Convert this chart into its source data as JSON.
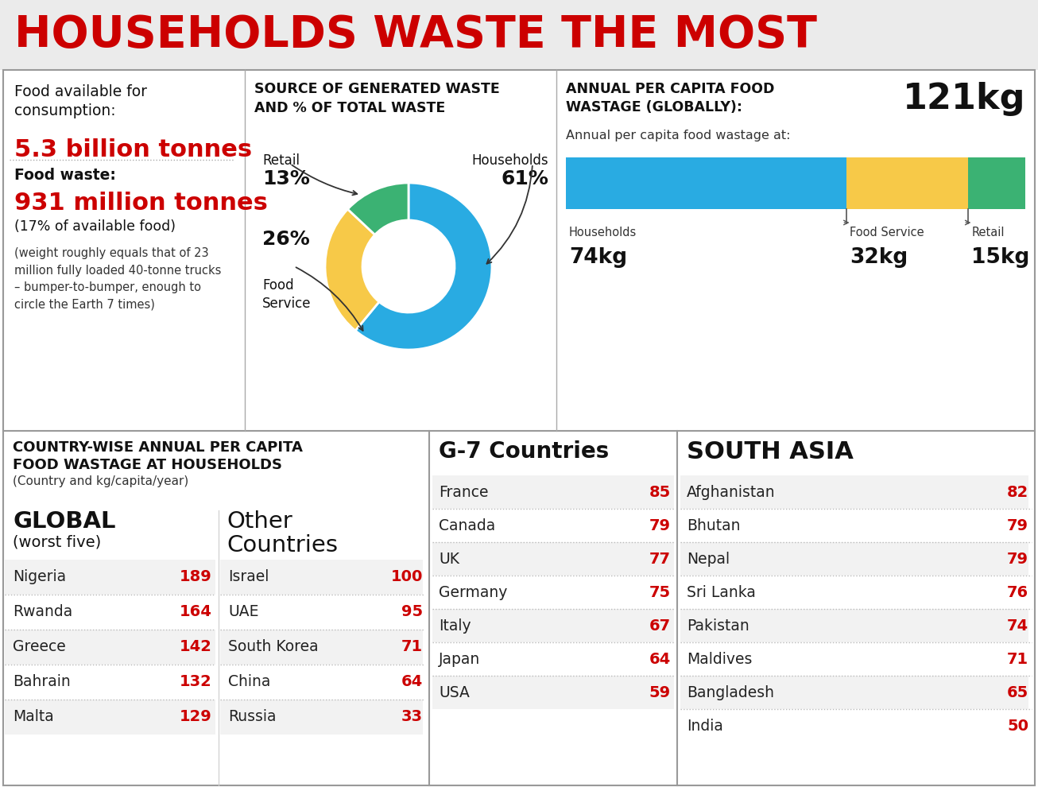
{
  "title": "HOUSEHOLDS WASTE THE MOST",
  "title_color": "#CC0000",
  "title_bg": "#E8E8E8",
  "bg_color": "#FFFFFF",
  "border_color": "#AAAAAA",
  "section1": {
    "food_available_label": "Food available for\nconsumption:",
    "food_available_value": "5.3 billion tonnes",
    "food_waste_label": "Food waste:",
    "food_waste_value": "931 million tonnes",
    "food_waste_sub": "(17% of available food)",
    "food_waste_note": "(weight roughly equals that of 23\nmillion fully loaded 40-tonne trucks\n– bumper-to-bumper, enough to\ncircle the Earth 7 times)"
  },
  "section2": {
    "title": "SOURCE OF GENERATED WASTE\nAND % OF TOTAL WASTE",
    "pie_values": [
      61,
      26,
      13
    ],
    "pie_labels": [
      "Households",
      "Food\nService",
      "Retail"
    ],
    "pie_percentages": [
      "61%",
      "26%",
      "13%"
    ],
    "pie_colors": [
      "#29ABE2",
      "#F7C948",
      "#3BB273"
    ]
  },
  "section3": {
    "title_line1": "ANNUAL PER CAPITA FOOD",
    "title_line2": "WASTAGE (GLOBALLY):",
    "global_value": "121kg",
    "sub_title": "Annual per capita food wastage at:",
    "bar_values": [
      74,
      32,
      15
    ],
    "bar_labels": [
      "Households",
      "Food Service",
      "Retail"
    ],
    "bar_kg": [
      "74kg",
      "32kg",
      "15kg"
    ],
    "bar_colors": [
      "#29ABE2",
      "#F7C948",
      "#3BB273"
    ]
  },
  "bottom_header_line1": "COUNTRY-WISE ANNUAL PER CAPITA",
  "bottom_header_line2": "FOOD WASTAGE AT HOUSEHOLDS",
  "bottom_header_line3": "(Country and kg/capita/year)",
  "global_section": {
    "title_line1": "GLOBAL",
    "title_line2": "(worst five)",
    "countries": [
      "Nigeria",
      "Rwanda",
      "Greece",
      "Bahrain",
      "Malta"
    ],
    "values": [
      189,
      164,
      142,
      132,
      129
    ]
  },
  "other_section": {
    "title_line1": "Other",
    "title_line2": "Countries",
    "countries": [
      "Israel",
      "UAE",
      "South Korea",
      "China",
      "Russia"
    ],
    "values": [
      100,
      95,
      71,
      64,
      33
    ]
  },
  "g7_section": {
    "title": "G-7 Countries",
    "countries": [
      "France",
      "Canada",
      "UK",
      "Germany",
      "Italy",
      "Japan",
      "USA"
    ],
    "values": [
      85,
      79,
      77,
      75,
      67,
      64,
      59
    ]
  },
  "southasia_section": {
    "title": "SOUTH ASIA",
    "countries": [
      "Afghanistan",
      "Bhutan",
      "Nepal",
      "Sri Lanka",
      "Pakistan",
      "Maldives",
      "Bangladesh",
      "India"
    ],
    "values": [
      82,
      79,
      79,
      76,
      74,
      71,
      65,
      50
    ]
  }
}
